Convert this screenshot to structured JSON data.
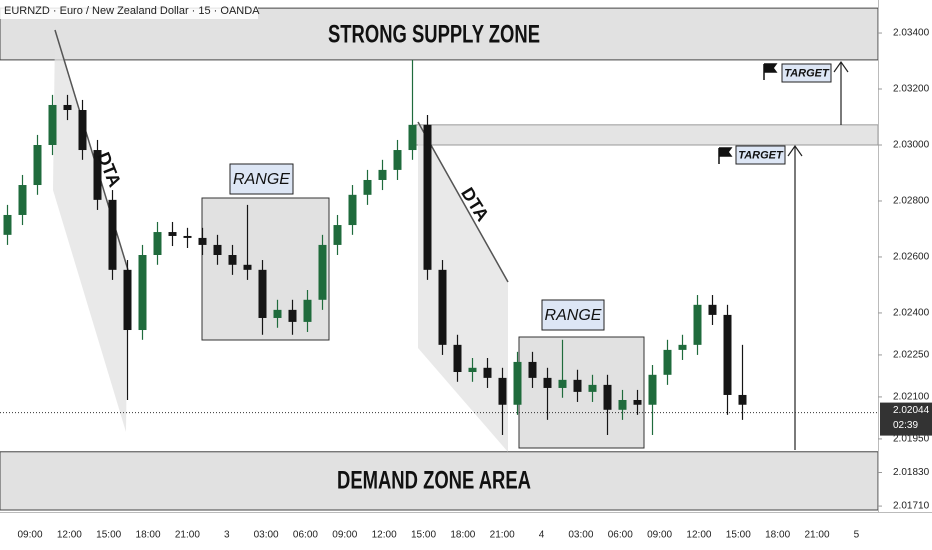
{
  "header": {
    "title": "EURNZD · Euro / New Zealand Dollar · 15 · OANDA"
  },
  "chart_data": {
    "type": "candlestick",
    "categories": [
      "09:00",
      "12:00",
      "15:00",
      "18:00",
      "21:00",
      "3",
      "03:00",
      "06:00",
      "09:00",
      "12:00",
      "15:00",
      "18:00",
      "21:00",
      "4",
      "03:00",
      "06:00",
      "09:00",
      "12:00",
      "15:00",
      "18:00",
      "21:00",
      "5"
    ],
    "ohlc": [
      [
        2.02679,
        2.02786,
        2.02643,
        2.0275
      ],
      [
        2.0275,
        2.02893,
        2.02714,
        2.02857
      ],
      [
        2.02857,
        2.03036,
        2.02822,
        2.03
      ],
      [
        2.03,
        2.03179,
        2.02964,
        2.03143
      ],
      [
        2.03143,
        2.03179,
        2.03089,
        2.03125
      ],
      [
        2.03125,
        2.03161,
        2.02947,
        2.02982
      ],
      [
        2.02982,
        2.03018,
        2.02768,
        2.02804
      ],
      [
        2.02804,
        2.02839,
        2.02518,
        2.02554
      ],
      [
        2.02554,
        2.02589,
        2.02089,
        2.02339
      ],
      [
        2.02339,
        2.02643,
        2.02304,
        2.02607
      ],
      [
        2.02607,
        2.02725,
        2.02572,
        2.02689
      ],
      [
        2.02689,
        2.02725,
        2.02639,
        2.02675
      ],
      [
        2.02675,
        2.02704,
        2.02632,
        2.02668
      ],
      [
        2.02668,
        2.02704,
        2.02607,
        2.02643
      ],
      [
        2.02643,
        2.02679,
        2.02572,
        2.02607
      ],
      [
        2.02607,
        2.02643,
        2.02536,
        2.02572
      ],
      [
        2.02572,
        2.02786,
        2.02518,
        2.02554
      ],
      [
        2.02554,
        2.02589,
        2.02322,
        2.02382
      ],
      [
        2.02382,
        2.02447,
        2.02347,
        2.02411
      ],
      [
        2.02411,
        2.02447,
        2.02322,
        2.02368
      ],
      [
        2.02368,
        2.02482,
        2.02332,
        2.02447
      ],
      [
        2.02447,
        2.02679,
        2.02411,
        2.02643
      ],
      [
        2.02643,
        2.0275,
        2.02607,
        2.02714
      ],
      [
        2.02714,
        2.02857,
        2.02679,
        2.02822
      ],
      [
        2.02822,
        2.02911,
        2.02786,
        2.02875
      ],
      [
        2.02875,
        2.02947,
        2.02839,
        2.02911
      ],
      [
        2.02911,
        2.03018,
        2.02875,
        2.02982
      ],
      [
        2.02982,
        2.03304,
        2.02947,
        2.03072
      ],
      [
        2.03072,
        2.03107,
        2.02518,
        2.02554
      ],
      [
        2.02554,
        2.02589,
        2.0225,
        2.02286
      ],
      [
        2.02286,
        2.02322,
        2.02154,
        2.02189
      ],
      [
        2.02189,
        2.02239,
        2.02154,
        2.02204
      ],
      [
        2.02204,
        2.02239,
        2.02132,
        2.02168
      ],
      [
        2.02168,
        2.02204,
        2.01964,
        2.02072
      ],
      [
        2.02072,
        2.02261,
        2.02036,
        2.02225
      ],
      [
        2.02225,
        2.02261,
        2.02132,
        2.02168
      ],
      [
        2.02168,
        2.02204,
        2.02018,
        2.02132
      ],
      [
        2.02132,
        2.02304,
        2.02097,
        2.02161
      ],
      [
        2.02161,
        2.02197,
        2.02082,
        2.02118
      ],
      [
        2.02118,
        2.02179,
        2.02082,
        2.02143
      ],
      [
        2.02143,
        2.02179,
        2.01964,
        2.02054
      ],
      [
        2.02054,
        2.02125,
        2.02018,
        2.02089
      ],
      [
        2.02089,
        2.02125,
        2.02036,
        2.02072
      ],
      [
        2.02072,
        2.02214,
        2.01964,
        2.02179
      ],
      [
        2.02179,
        2.02304,
        2.02143,
        2.02268
      ],
      [
        2.02268,
        2.02322,
        2.02232,
        2.02286
      ],
      [
        2.02286,
        2.02464,
        2.0225,
        2.02429
      ],
      [
        2.02429,
        2.02464,
        2.02357,
        2.02393
      ],
      [
        2.02393,
        2.02429,
        2.02036,
        2.02107
      ],
      [
        2.02107,
        2.02286,
        2.02018,
        2.02072
      ]
    ],
    "up_color": "#1f6b3c",
    "down_color": "#151515",
    "ylim": [
      2.01696,
      2.03518
    ],
    "yticks": [
      {
        "value": 2.034,
        "label": "2.03400"
      },
      {
        "value": 2.032,
        "label": "2.03200"
      },
      {
        "value": 2.03,
        "label": "2.03000"
      },
      {
        "value": 2.028,
        "label": "2.02800"
      },
      {
        "value": 2.026,
        "label": "2.02600"
      },
      {
        "value": 2.024,
        "label": "2.02400"
      },
      {
        "value": 2.0225,
        "label": "2.02250"
      },
      {
        "value": 2.021,
        "label": "2.02100"
      },
      {
        "value": 2.0195,
        "label": "2.01950"
      },
      {
        "value": 2.0183,
        "label": "2.01830"
      },
      {
        "value": 2.0171,
        "label": "2.01710"
      }
    ],
    "grid": false,
    "last_price": 2.02044,
    "countdown": "02:39",
    "zones": [
      {
        "label": "STRONG SUPPLY ZONE",
        "top": 2.03489,
        "bottom": 2.03304
      },
      {
        "label": "DEMAND ZONE AREA",
        "top": 2.01904,
        "bottom": 2.01696
      }
    ],
    "target_band": {
      "top": 2.03072,
      "bottom": 2.03
    },
    "annotations": {
      "range": [
        "RANGE",
        "RANGE"
      ],
      "dta": [
        "DTA",
        "DTA"
      ],
      "target": [
        "TARGET",
        "TARGET"
      ]
    }
  }
}
